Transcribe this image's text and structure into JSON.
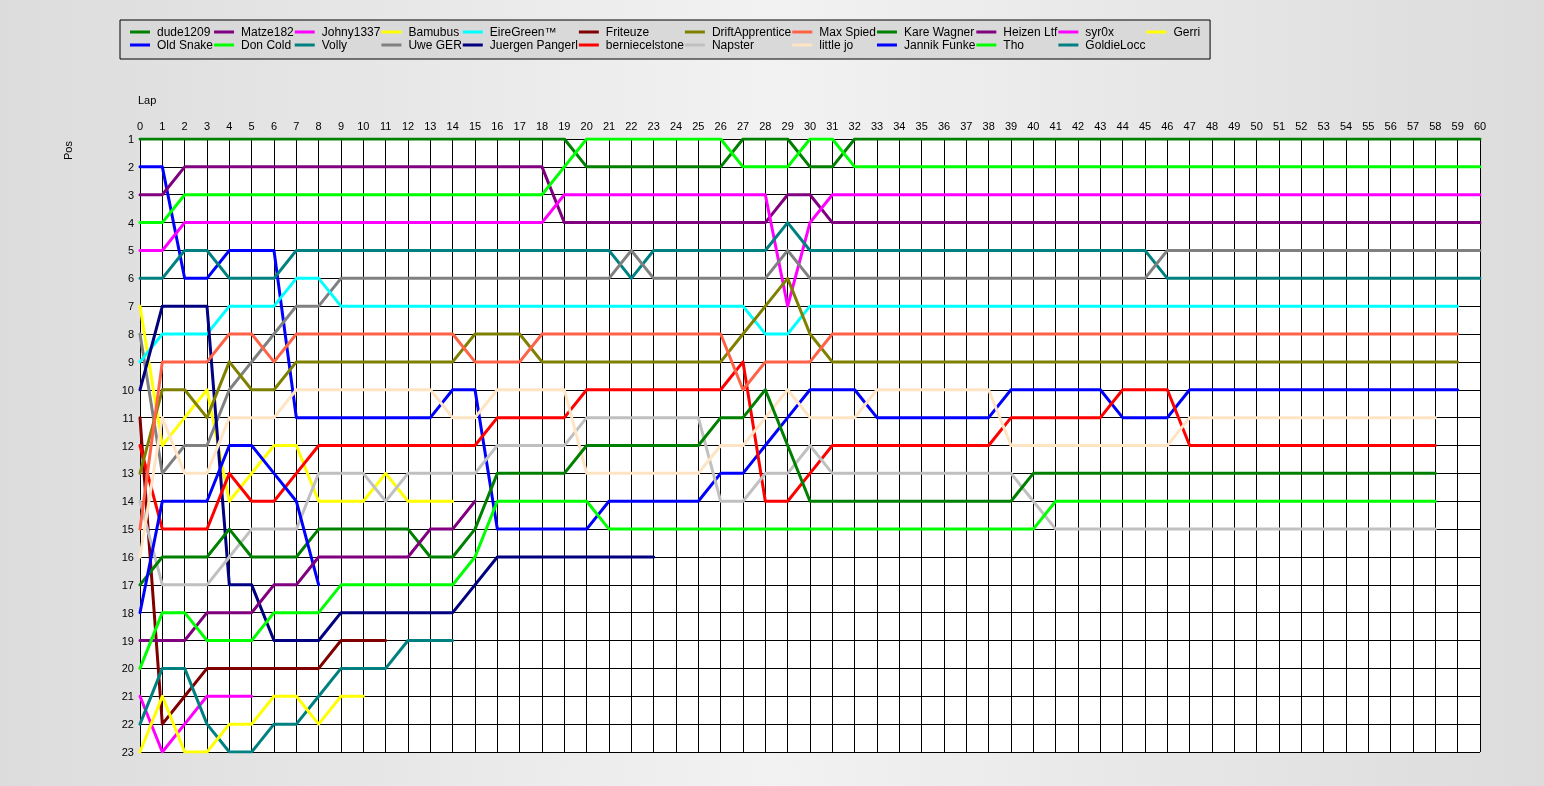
{
  "chart_data": {
    "type": "line",
    "xlabel": "Lap",
    "ylabel": "Pos",
    "xlim": [
      0,
      60
    ],
    "xticks": [
      0,
      1,
      2,
      3,
      4,
      5,
      6,
      7,
      8,
      9,
      10,
      11,
      12,
      13,
      14,
      15,
      16,
      17,
      18,
      19,
      20,
      21,
      22,
      23,
      24,
      25,
      26,
      27,
      28,
      29,
      30,
      31,
      32,
      33,
      34,
      35,
      36,
      37,
      38,
      39,
      40,
      41,
      42,
      43,
      44,
      45,
      46,
      47,
      48,
      49,
      50,
      51,
      52,
      53,
      54,
      55,
      56,
      57,
      58,
      59,
      60
    ],
    "ylim": [
      23,
      1
    ],
    "yticks": [
      1,
      2,
      3,
      4,
      5,
      6,
      7,
      8,
      9,
      10,
      11,
      12,
      13,
      14,
      15,
      16,
      17,
      18,
      19,
      20,
      21,
      22,
      23
    ],
    "grid": true,
    "legend": "top",
    "marker": "none",
    "line_style": "solid",
    "x": [
      0,
      1,
      2,
      3,
      4,
      5,
      6,
      7,
      8,
      9,
      10,
      11,
      12,
      13,
      14,
      15,
      16,
      17,
      18,
      19,
      20,
      21,
      22,
      23,
      24,
      25,
      26,
      27,
      28,
      29,
      30,
      31,
      32,
      33,
      34,
      35,
      36,
      37,
      38,
      39,
      40,
      41,
      42,
      43,
      44,
      45,
      46,
      47,
      48,
      49,
      50,
      51,
      52,
      53,
      54,
      55,
      56,
      57,
      58,
      59,
      60
    ],
    "series": [
      {
        "name": "dude1209",
        "color": "#008000",
        "values": [
          1,
          1,
          1,
          1,
          1,
          1,
          1,
          1,
          1,
          1,
          1,
          1,
          1,
          1,
          1,
          1,
          1,
          1,
          1,
          1,
          2,
          2,
          2,
          2,
          2,
          2,
          2,
          1,
          1,
          1,
          2,
          2,
          1,
          1,
          1,
          1,
          1,
          1,
          1,
          1,
          1,
          1,
          1,
          1,
          1,
          1,
          1,
          1,
          1,
          1,
          1,
          1,
          1,
          1,
          1,
          1,
          1,
          1,
          1,
          1,
          1
        ]
      },
      {
        "name": "Old Snake",
        "color": "#0000ff",
        "values": [
          2,
          2,
          6,
          6,
          5,
          5,
          5,
          11,
          11,
          11,
          11,
          11,
          11,
          11,
          10,
          10,
          15,
          15,
          15,
          15,
          15,
          14,
          14,
          14,
          14,
          14,
          13,
          13,
          12,
          11,
          10,
          10,
          10,
          11,
          11,
          11,
          11,
          11,
          11,
          10,
          10,
          10,
          10,
          10,
          11,
          11,
          11,
          10,
          10,
          10,
          10,
          10,
          10,
          10,
          10,
          10,
          10,
          10,
          10,
          10,
          null
        ]
      },
      {
        "name": "Matze182",
        "color": "#800080",
        "values": [
          3,
          3,
          2,
          2,
          2,
          2,
          2,
          2,
          2,
          2,
          2,
          2,
          2,
          2,
          2,
          2,
          2,
          2,
          2,
          4,
          4,
          4,
          4,
          4,
          4,
          4,
          4,
          4,
          4,
          3,
          3,
          4,
          4,
          4,
          4,
          4,
          4,
          4,
          4,
          4,
          4,
          4,
          4,
          4,
          4,
          4,
          4,
          4,
          4,
          4,
          4,
          4,
          4,
          4,
          4,
          4,
          4,
          4,
          4,
          4,
          4
        ]
      },
      {
        "name": "Don Cold",
        "color": "#00ff00",
        "values": [
          4,
          4,
          3,
          3,
          3,
          3,
          3,
          3,
          3,
          3,
          3,
          3,
          3,
          3,
          3,
          3,
          3,
          3,
          3,
          2,
          1,
          1,
          1,
          1,
          1,
          1,
          1,
          2,
          2,
          2,
          1,
          1,
          2,
          2,
          2,
          2,
          2,
          2,
          2,
          2,
          2,
          2,
          2,
          2,
          2,
          2,
          2,
          2,
          2,
          2,
          2,
          2,
          2,
          2,
          2,
          2,
          2,
          2,
          2,
          2,
          2
        ]
      },
      {
        "name": "Johny1337",
        "color": "#ff00ff",
        "values": [
          5,
          5,
          4,
          4,
          4,
          4,
          4,
          4,
          4,
          4,
          4,
          4,
          4,
          4,
          4,
          4,
          4,
          4,
          4,
          3,
          3,
          3,
          3,
          3,
          3,
          3,
          3,
          3,
          3,
          7,
          4,
          3,
          3,
          3,
          3,
          3,
          3,
          3,
          3,
          3,
          3,
          3,
          3,
          3,
          3,
          3,
          3,
          3,
          3,
          3,
          3,
          3,
          3,
          3,
          3,
          3,
          3,
          3,
          3,
          3,
          3
        ]
      },
      {
        "name": "Volly",
        "color": "#008080",
        "values": [
          6,
          6,
          5,
          5,
          6,
          6,
          6,
          5,
          5,
          5,
          5,
          5,
          5,
          5,
          5,
          5,
          5,
          5,
          5,
          5,
          5,
          5,
          6,
          5,
          5,
          5,
          5,
          5,
          5,
          4,
          5,
          5,
          5,
          5,
          5,
          5,
          5,
          5,
          5,
          5,
          5,
          5,
          5,
          5,
          5,
          5,
          6,
          6,
          6,
          6,
          6,
          6,
          6,
          6,
          6,
          6,
          6,
          6,
          6,
          6,
          6
        ]
      },
      {
        "name": "Bamubus",
        "color": "#ffff00",
        "values": [
          7,
          12,
          11,
          10,
          14,
          13,
          12,
          12,
          14,
          14,
          14,
          13,
          14,
          14,
          14,
          null,
          null,
          null,
          null,
          null,
          null,
          null,
          null,
          null,
          null,
          null,
          null,
          null,
          null,
          null,
          null,
          null,
          null,
          null,
          null,
          null,
          null,
          null,
          null,
          null,
          null,
          null,
          null,
          null,
          null,
          null,
          null,
          null,
          null,
          null,
          null,
          null,
          null,
          null,
          null,
          null,
          null,
          null,
          null,
          null,
          null
        ]
      },
      {
        "name": "Uwe GER",
        "color": "#808080",
        "values": [
          8,
          13,
          12,
          12,
          10,
          9,
          8,
          7,
          7,
          6,
          6,
          6,
          6,
          6,
          6,
          6,
          6,
          6,
          6,
          6,
          6,
          6,
          5,
          6,
          6,
          6,
          6,
          6,
          6,
          5,
          6,
          6,
          6,
          6,
          6,
          6,
          6,
          6,
          6,
          6,
          6,
          6,
          6,
          6,
          6,
          6,
          5,
          5,
          5,
          5,
          5,
          5,
          5,
          5,
          5,
          5,
          5,
          5,
          5,
          5,
          5
        ]
      },
      {
        "name": "EireGreen™",
        "color": "#00ffff",
        "values": [
          9,
          8,
          8,
          8,
          7,
          7,
          7,
          6,
          6,
          7,
          7,
          7,
          7,
          7,
          7,
          7,
          7,
          7,
          7,
          7,
          7,
          7,
          7,
          7,
          7,
          7,
          7,
          7,
          8,
          8,
          7,
          7,
          7,
          7,
          7,
          7,
          7,
          7,
          7,
          7,
          7,
          7,
          7,
          7,
          7,
          7,
          7,
          7,
          7,
          7,
          7,
          7,
          7,
          7,
          7,
          7,
          7,
          7,
          7,
          7,
          null
        ]
      },
      {
        "name": "Juergen Pangerl",
        "color": "#000080",
        "values": [
          10,
          7,
          7,
          7,
          17,
          17,
          19,
          19,
          19,
          18,
          18,
          18,
          18,
          18,
          18,
          17,
          16,
          16,
          16,
          16,
          16,
          16,
          16,
          16,
          null,
          null,
          null,
          null,
          null,
          null,
          null,
          null,
          null,
          null,
          null,
          null,
          null,
          null,
          null,
          null,
          null,
          null,
          null,
          null,
          null,
          null,
          null,
          null,
          null,
          null,
          null,
          null,
          null,
          null,
          null,
          null,
          null,
          null,
          null,
          null,
          null
        ]
      },
      {
        "name": "Friteuze",
        "color": "#800000",
        "values": [
          11,
          22,
          21,
          20,
          20,
          20,
          20,
          20,
          20,
          19,
          19,
          19,
          null,
          null,
          null,
          null,
          null,
          null,
          null,
          null,
          null,
          null,
          null,
          null,
          null,
          null,
          null,
          null,
          null,
          null,
          null,
          null,
          null,
          null,
          null,
          null,
          null,
          null,
          null,
          null,
          null,
          null,
          null,
          null,
          null,
          null,
          null,
          null,
          null,
          null,
          null,
          null,
          null,
          null,
          null,
          null,
          null,
          null,
          null,
          null,
          null
        ]
      },
      {
        "name": "berniecelstone",
        "color": "#ff0000",
        "values": [
          12,
          15,
          15,
          15,
          13,
          14,
          14,
          13,
          12,
          12,
          12,
          12,
          12,
          12,
          12,
          12,
          11,
          11,
          11,
          11,
          10,
          10,
          10,
          10,
          10,
          10,
          10,
          9,
          14,
          14,
          13,
          12,
          12,
          12,
          12,
          12,
          12,
          12,
          12,
          11,
          11,
          11,
          11,
          11,
          10,
          10,
          10,
          12,
          12,
          12,
          12,
          12,
          12,
          12,
          12,
          12,
          12,
          12,
          12,
          null,
          null
        ]
      },
      {
        "name": "DriftApprentice",
        "color": "#808000",
        "values": [
          13,
          10,
          10,
          11,
          9,
          10,
          10,
          9,
          9,
          9,
          9,
          9,
          9,
          9,
          9,
          8,
          8,
          8,
          9,
          9,
          9,
          9,
          9,
          9,
          9,
          9,
          9,
          8,
          7,
          6,
          8,
          9,
          9,
          9,
          9,
          9,
          9,
          9,
          9,
          9,
          9,
          9,
          9,
          9,
          9,
          9,
          9,
          9,
          9,
          9,
          9,
          9,
          9,
          9,
          9,
          9,
          9,
          9,
          9,
          9,
          null
        ]
      },
      {
        "name": "Napster",
        "color": "#c0c0c0",
        "values": [
          14,
          17,
          17,
          17,
          16,
          15,
          15,
          15,
          13,
          13,
          13,
          14,
          13,
          13,
          13,
          13,
          12,
          12,
          12,
          12,
          11,
          11,
          11,
          11,
          11,
          11,
          14,
          14,
          13,
          13,
          12,
          13,
          13,
          13,
          13,
          13,
          13,
          13,
          13,
          13,
          14,
          15,
          15,
          15,
          15,
          15,
          15,
          15,
          15,
          15,
          15,
          15,
          15,
          15,
          15,
          15,
          15,
          15,
          15,
          null,
          null
        ]
      },
      {
        "name": "Max Spied",
        "color": "#ff6347",
        "values": [
          15,
          9,
          9,
          9,
          8,
          8,
          9,
          8,
          8,
          8,
          8,
          8,
          8,
          8,
          8,
          9,
          9,
          9,
          8,
          8,
          8,
          8,
          8,
          8,
          8,
          8,
          8,
          10,
          9,
          9,
          9,
          8,
          8,
          8,
          8,
          8,
          8,
          8,
          8,
          8,
          8,
          8,
          8,
          8,
          8,
          8,
          8,
          8,
          8,
          8,
          8,
          8,
          8,
          8,
          8,
          8,
          8,
          8,
          8,
          8,
          null
        ]
      },
      {
        "name": "little jo",
        "color": "#ffe4c4",
        "values": [
          16,
          11,
          13,
          13,
          11,
          11,
          11,
          10,
          10,
          10,
          10,
          10,
          10,
          10,
          11,
          11,
          10,
          10,
          10,
          10,
          13,
          13,
          13,
          13,
          13,
          13,
          12,
          12,
          11,
          10,
          11,
          11,
          11,
          10,
          10,
          10,
          10,
          10,
          10,
          12,
          12,
          12,
          12,
          12,
          12,
          12,
          12,
          11,
          11,
          11,
          11,
          11,
          11,
          11,
          11,
          11,
          11,
          11,
          11,
          null,
          null
        ]
      },
      {
        "name": "Kare Wagner",
        "color": "#008000",
        "values": [
          17,
          16,
          16,
          16,
          15,
          16,
          16,
          16,
          15,
          15,
          15,
          15,
          15,
          16,
          16,
          15,
          13,
          13,
          13,
          13,
          12,
          12,
          12,
          12,
          12,
          12,
          11,
          11,
          10,
          12,
          14,
          14,
          14,
          14,
          14,
          14,
          14,
          14,
          14,
          14,
          13,
          13,
          13,
          13,
          13,
          13,
          13,
          13,
          13,
          13,
          13,
          13,
          13,
          13,
          13,
          13,
          13,
          13,
          13,
          null,
          null
        ]
      },
      {
        "name": "Jannik Funke",
        "color": "#0000ff",
        "values": [
          18,
          14,
          14,
          14,
          12,
          12,
          13,
          14,
          17,
          null,
          null,
          null,
          null,
          null,
          null,
          null,
          null,
          null,
          null,
          null,
          null,
          null,
          null,
          null,
          null,
          null,
          null,
          null,
          null,
          null,
          null,
          null,
          null,
          null,
          null,
          null,
          null,
          null,
          null,
          null,
          null,
          null,
          null,
          null,
          null,
          null,
          null,
          null,
          null,
          null,
          null,
          null,
          null,
          null,
          null,
          null,
          null,
          null,
          null,
          null,
          null
        ]
      },
      {
        "name": "Heizen Ltf",
        "color": "#800080",
        "values": [
          19,
          19,
          19,
          18,
          18,
          18,
          17,
          17,
          16,
          16,
          16,
          16,
          16,
          15,
          15,
          14,
          null,
          null,
          null,
          null,
          null,
          null,
          null,
          null,
          null,
          null,
          null,
          null,
          null,
          null,
          null,
          null,
          null,
          null,
          null,
          null,
          null,
          null,
          null,
          null,
          null,
          null,
          null,
          null,
          null,
          null,
          null,
          null,
          null,
          null,
          null,
          null,
          null,
          null,
          null,
          null,
          null,
          null,
          null,
          null,
          null
        ]
      },
      {
        "name": "Tho",
        "color": "#00ff00",
        "values": [
          20,
          18,
          18,
          19,
          19,
          19,
          18,
          18,
          18,
          17,
          17,
          17,
          17,
          17,
          17,
          16,
          14,
          14,
          14,
          14,
          14,
          15,
          15,
          15,
          15,
          15,
          15,
          15,
          15,
          15,
          15,
          15,
          15,
          15,
          15,
          15,
          15,
          15,
          15,
          15,
          15,
          14,
          14,
          14,
          14,
          14,
          14,
          14,
          14,
          14,
          14,
          14,
          14,
          14,
          14,
          14,
          14,
          14,
          14,
          null,
          null
        ]
      },
      {
        "name": "syr0x",
        "color": "#ff00ff",
        "values": [
          21,
          23,
          22,
          21,
          21,
          21,
          null,
          null,
          null,
          null,
          null,
          null,
          null,
          null,
          null,
          null,
          null,
          null,
          null,
          null,
          null,
          null,
          null,
          null,
          null,
          null,
          null,
          null,
          null,
          null,
          null,
          null,
          null,
          null,
          null,
          null,
          null,
          null,
          null,
          null,
          null,
          null,
          null,
          null,
          null,
          null,
          null,
          null,
          null,
          null,
          null,
          null,
          null,
          null,
          null,
          null,
          null,
          null,
          null,
          null,
          null
        ]
      },
      {
        "name": "GoldieLocc",
        "color": "#008080",
        "values": [
          22,
          20,
          20,
          22,
          23,
          23,
          22,
          22,
          21,
          20,
          20,
          20,
          19,
          19,
          19,
          null,
          null,
          null,
          null,
          null,
          null,
          null,
          null,
          null,
          null,
          null,
          null,
          null,
          null,
          null,
          null,
          null,
          null,
          null,
          null,
          null,
          null,
          null,
          null,
          null,
          null,
          null,
          null,
          null,
          null,
          null,
          null,
          null,
          null,
          null,
          null,
          null,
          null,
          null,
          null,
          null,
          null,
          null,
          null,
          null,
          null
        ]
      },
      {
        "name": "Gerri",
        "color": "#ffff00",
        "values": [
          23,
          21,
          23,
          23,
          22,
          22,
          21,
          21,
          22,
          21,
          21,
          null,
          null,
          null,
          null,
          null,
          null,
          null,
          null,
          null,
          null,
          null,
          null,
          null,
          null,
          null,
          null,
          null,
          null,
          null,
          null,
          null,
          null,
          null,
          null,
          null,
          null,
          null,
          null,
          null,
          null,
          null,
          null,
          null,
          null,
          null,
          null,
          null,
          null,
          null,
          null,
          null,
          null,
          null,
          null,
          null,
          null,
          null,
          null,
          null,
          null
        ]
      }
    ]
  }
}
